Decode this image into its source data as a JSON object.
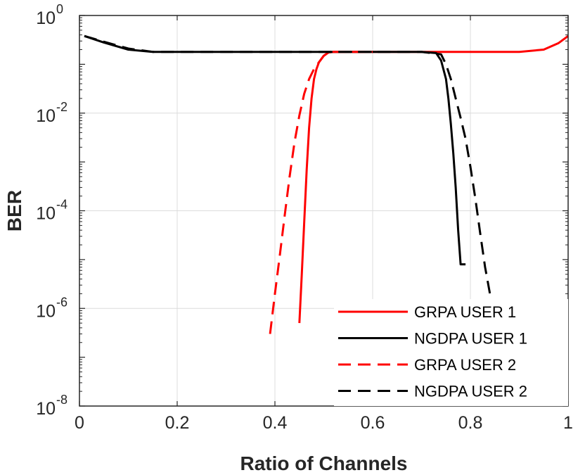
{
  "chart_data": {
    "type": "line",
    "title": "",
    "xlabel": "Ratio of Channels",
    "ylabel": "BER",
    "xlim": [
      0,
      1
    ],
    "ylim": [
      1e-08,
      1
    ],
    "yscale": "log",
    "grid": true,
    "legend_position": "bottom-right",
    "xticks": [
      0,
      0.2,
      0.4,
      0.6,
      0.8,
      1
    ],
    "xtick_labels": [
      "0",
      "0.2",
      "0.4",
      "0.6",
      "0.8",
      "1"
    ],
    "yticks": [
      {
        "value": 1e-08,
        "base": "10",
        "exp": "-8"
      },
      {
        "value": 1e-06,
        "base": "10",
        "exp": "-6"
      },
      {
        "value": 0.0001,
        "base": "10",
        "exp": "-4"
      },
      {
        "value": 0.01,
        "base": "10",
        "exp": "-2"
      },
      {
        "value": 1,
        "base": "10",
        "exp": "0"
      }
    ],
    "series": [
      {
        "name": "GRPA USER 1",
        "color": "#ff0000",
        "dash": "solid",
        "x": [
          0.45,
          0.455,
          0.46,
          0.465,
          0.47,
          0.475,
          0.48,
          0.485,
          0.49,
          0.5,
          0.51,
          0.52,
          0.55,
          0.6,
          0.7,
          0.8,
          0.9,
          0.95,
          0.98,
          1.0
        ],
        "y": [
          5e-07,
          5e-06,
          6e-05,
          0.0007,
          0.005,
          0.02,
          0.05,
          0.08,
          0.11,
          0.15,
          0.175,
          0.18,
          0.18,
          0.18,
          0.18,
          0.18,
          0.18,
          0.2,
          0.27,
          0.38
        ]
      },
      {
        "name": "NGDPA USER 1",
        "color": "#000000",
        "dash": "solid",
        "x": [
          0.01,
          0.05,
          0.1,
          0.15,
          0.2,
          0.3,
          0.4,
          0.5,
          0.6,
          0.7,
          0.73,
          0.74,
          0.75,
          0.755,
          0.76,
          0.765,
          0.77,
          0.775,
          0.78,
          0.785,
          0.79
        ],
        "y": [
          0.38,
          0.28,
          0.2,
          0.18,
          0.18,
          0.18,
          0.18,
          0.18,
          0.18,
          0.18,
          0.17,
          0.12,
          0.05,
          0.02,
          0.006,
          0.0015,
          0.0003,
          4e-05,
          8e-06,
          8e-06,
          8e-06
        ]
      },
      {
        "name": "GRPA USER 2",
        "color": "#ff0000",
        "dash": "dashed",
        "x": [
          0.39,
          0.4,
          0.41,
          0.42,
          0.43,
          0.44,
          0.45,
          0.46,
          0.47,
          0.48,
          0.49,
          0.5,
          0.51,
          0.52,
          0.55,
          0.6
        ],
        "y": [
          3e-07,
          2e-06,
          1.2e-05,
          8e-05,
          0.0005,
          0.0025,
          0.009,
          0.025,
          0.05,
          0.08,
          0.11,
          0.15,
          0.175,
          0.18,
          0.18,
          0.18
        ]
      },
      {
        "name": "NGDPA USER 2",
        "color": "#000000",
        "dash": "dashed",
        "x": [
          0.01,
          0.05,
          0.1,
          0.15,
          0.2,
          0.3,
          0.4,
          0.5,
          0.6,
          0.7,
          0.74,
          0.75,
          0.76,
          0.77,
          0.78,
          0.79,
          0.8,
          0.81,
          0.82,
          0.83,
          0.84
        ],
        "y": [
          0.38,
          0.29,
          0.21,
          0.18,
          0.18,
          0.18,
          0.18,
          0.18,
          0.18,
          0.18,
          0.16,
          0.1,
          0.05,
          0.02,
          0.008,
          0.003,
          0.0008,
          0.00018,
          3.5e-05,
          7e-06,
          2e-06
        ]
      }
    ]
  }
}
